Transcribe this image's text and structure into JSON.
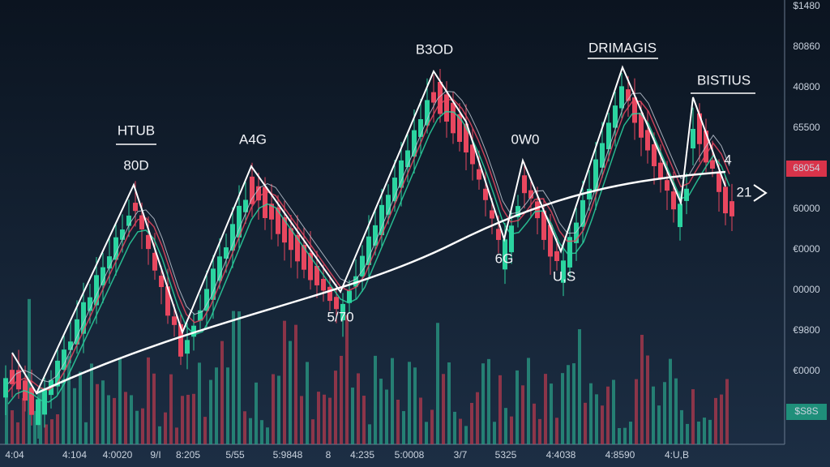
{
  "annotations": [
    "HTUB",
    "80D",
    "A4G",
    "B3OD",
    "0W0",
    "DRIMAGIS",
    "BISTIUS",
    "6G",
    "U,S",
    "5/70",
    "21",
    "4"
  ],
  "price_axis": [
    "$1480",
    "80860",
    "40800",
    "65500",
    "68054",
    "60000",
    "€0000",
    "00000",
    "€9800",
    "€0000",
    "$S8S"
  ],
  "time_axis": [
    "4:04",
    "4:104",
    "4:0020",
    "9/I",
    "8:205",
    "5/55",
    "5:9848",
    "8",
    "4:235",
    "5:0008",
    "3/7",
    "5325",
    "4:4038",
    "4:8590",
    "4:U,B"
  ]
}
